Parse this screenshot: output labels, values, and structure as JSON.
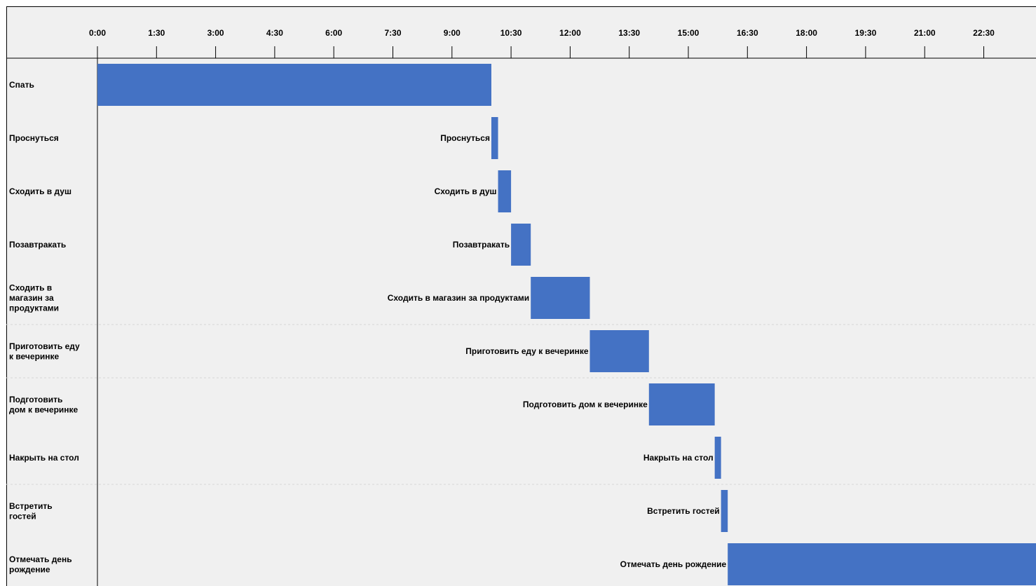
{
  "chart_data": {
    "type": "gantt",
    "x_axis": {
      "unit": "hours",
      "range": [
        0,
        24
      ],
      "ticks": [
        {
          "value": 0,
          "label": "0:00"
        },
        {
          "value": 1.5,
          "label": "1:30"
        },
        {
          "value": 3,
          "label": "3:00"
        },
        {
          "value": 4.5,
          "label": "4:30"
        },
        {
          "value": 6,
          "label": "6:00"
        },
        {
          "value": 7.5,
          "label": "7:30"
        },
        {
          "value": 9,
          "label": "9:00"
        },
        {
          "value": 10.5,
          "label": "10:30"
        },
        {
          "value": 12,
          "label": "12:00"
        },
        {
          "value": 13.5,
          "label": "13:30"
        },
        {
          "value": 15,
          "label": "15:00"
        },
        {
          "value": 16.5,
          "label": "16:30"
        },
        {
          "value": 18,
          "label": "18:00"
        },
        {
          "value": 19.5,
          "label": "19:30"
        },
        {
          "value": 21,
          "label": "21:00"
        },
        {
          "value": 22.5,
          "label": "22:30"
        }
      ],
      "position": "top"
    },
    "grid": false,
    "bar_color": "#4472c4",
    "tasks": [
      {
        "row_label": [
          "Спать"
        ],
        "bar_label": "",
        "start": 0,
        "end": 10
      },
      {
        "row_label": [
          "Проснуться"
        ],
        "bar_label": "Проснуться",
        "start": 10,
        "end": 10.17
      },
      {
        "row_label": [
          "Сходить в душ"
        ],
        "bar_label": "Сходить в душ",
        "start": 10.17,
        "end": 10.5
      },
      {
        "row_label": [
          "Позавтракать"
        ],
        "bar_label": "Позавтракать",
        "start": 10.5,
        "end": 11
      },
      {
        "row_label": [
          "Сходить в",
          "магазин за",
          "продуктами"
        ],
        "bar_label": "Сходить в магазин за продуктами",
        "start": 11,
        "end": 12.5
      },
      {
        "row_label": [
          "Приготовить еду",
          "к вечеринке"
        ],
        "bar_label": "Приготовить еду к вечеринке",
        "start": 12.5,
        "end": 14
      },
      {
        "row_label": [
          "Подготовить",
          "дом к вечеринке"
        ],
        "bar_label": "Подготовить дом к вечеринке",
        "start": 14,
        "end": 15.67
      },
      {
        "row_label": [
          "Накрыть на стол"
        ],
        "bar_label": "Накрыть на стол",
        "start": 15.67,
        "end": 15.83
      },
      {
        "row_label": [
          "Встретить",
          "гостей"
        ],
        "bar_label": "Встретить гостей",
        "start": 15.83,
        "end": 16
      },
      {
        "row_label": [
          "Отмечать день",
          "рождение"
        ],
        "bar_label": "Отмечать день рождение",
        "start": 16,
        "end": 24
      }
    ]
  }
}
